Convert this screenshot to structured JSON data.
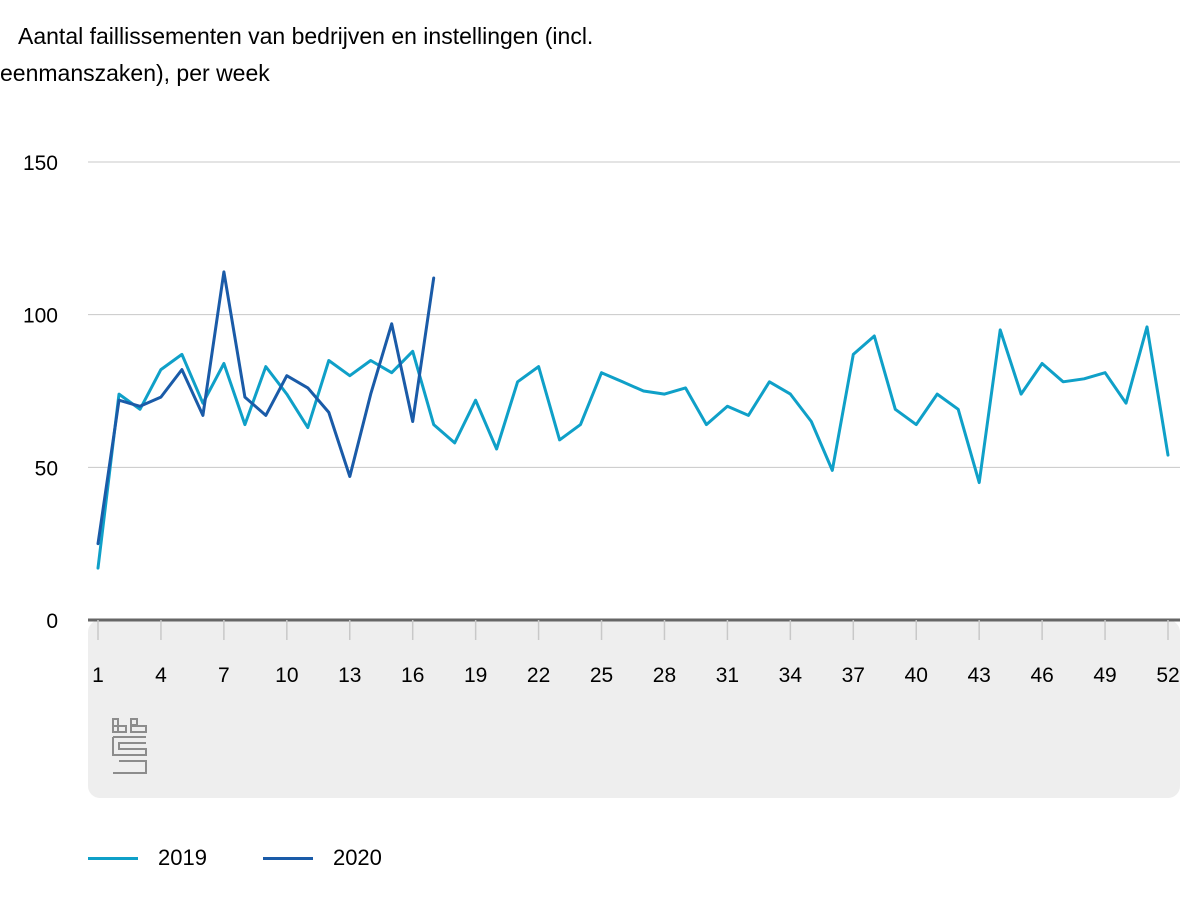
{
  "title_line1": "Aantal faillissementen van bedrijven en instellingen (incl.",
  "title_line2": "eenmanszaken), per week",
  "colors": {
    "s2019": "#0fa0c8",
    "s2020": "#1a5ba8",
    "grid": "#c8c8c8",
    "axis": "#666666",
    "band": "#eeeeee"
  },
  "icons": {
    "logo": "cbs-logo-icon"
  },
  "chart_data": {
    "type": "line",
    "title": "Aantal faillissementen van bedrijven en instellingen (incl. eenmanszaken), per week",
    "xlabel": "",
    "ylabel": "",
    "ylim": [
      0,
      150
    ],
    "yticks": [
      0,
      50,
      100,
      150
    ],
    "xticks": [
      1,
      4,
      7,
      10,
      13,
      16,
      19,
      22,
      25,
      28,
      31,
      34,
      37,
      40,
      43,
      46,
      49,
      52
    ],
    "grid": true,
    "legend_position": "bottom-left",
    "series": [
      {
        "name": "2019",
        "x": [
          1,
          2,
          3,
          4,
          5,
          6,
          7,
          8,
          9,
          10,
          11,
          12,
          13,
          14,
          15,
          16,
          17,
          18,
          19,
          20,
          21,
          22,
          23,
          24,
          25,
          26,
          27,
          28,
          29,
          30,
          31,
          32,
          33,
          34,
          35,
          36,
          37,
          38,
          39,
          40,
          41,
          42,
          43,
          44,
          45,
          46,
          47,
          48,
          49,
          50,
          51,
          52
        ],
        "values": [
          17,
          74,
          69,
          82,
          87,
          71,
          84,
          64,
          83,
          74,
          63,
          85,
          80,
          85,
          81,
          88,
          64,
          58,
          72,
          56,
          78,
          83,
          59,
          64,
          81,
          78,
          75,
          74,
          76,
          64,
          70,
          67,
          78,
          74,
          65,
          49,
          87,
          93,
          69,
          64,
          74,
          69,
          45,
          95,
          74,
          84,
          78,
          79,
          81,
          71,
          96,
          54
        ]
      },
      {
        "name": "2020",
        "x": [
          1,
          2,
          3,
          4,
          5,
          6,
          7,
          8,
          9,
          10,
          11,
          12,
          13,
          14,
          15,
          16,
          17
        ],
        "values": [
          25,
          72,
          70,
          73,
          82,
          67,
          114,
          73,
          67,
          80,
          76,
          68,
          47,
          74,
          97,
          65,
          112
        ]
      }
    ]
  }
}
